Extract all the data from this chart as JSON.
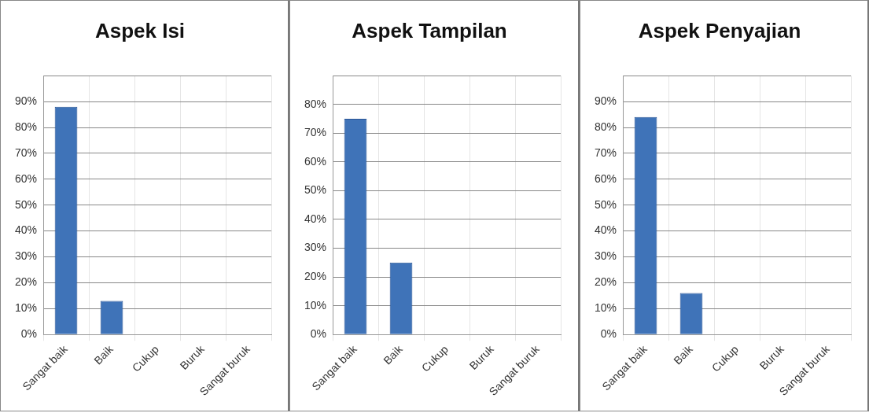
{
  "chart_data": [
    {
      "type": "bar",
      "title": "Aspek Isi",
      "categories": [
        "Sangat baik",
        "Baik",
        "Cukup",
        "Buruk",
        "Sangat buruk"
      ],
      "values": [
        88,
        13,
        0,
        0,
        0
      ],
      "color": "#3f73b8",
      "ylim": [
        0,
        100
      ],
      "yticks": [
        {
          "value": 0,
          "label": "0%"
        },
        {
          "value": 10,
          "label": "10%"
        },
        {
          "value": 20,
          "label": "20%"
        },
        {
          "value": 30,
          "label": "30%"
        },
        {
          "value": 40,
          "label": "40%"
        },
        {
          "value": 50,
          "label": "50%"
        },
        {
          "value": 60,
          "label": "60%"
        },
        {
          "value": 70,
          "label": "70%"
        },
        {
          "value": 80,
          "label": "80%"
        },
        {
          "value": 90,
          "label": "90%"
        },
        {
          "value": 100,
          "label": null
        }
      ],
      "grid": true,
      "legend": false
    },
    {
      "type": "bar",
      "title": "Aspek Tampilan",
      "categories": [
        "Sangat baik",
        "Baik",
        "Cukup",
        "Buruk",
        "Sangat buruk"
      ],
      "values": [
        75,
        25,
        0,
        0,
        0
      ],
      "color": "#3f73b8",
      "ylim": [
        0,
        90
      ],
      "yticks": [
        {
          "value": 0,
          "label": "0%"
        },
        {
          "value": 10,
          "label": "10%"
        },
        {
          "value": 20,
          "label": "20%"
        },
        {
          "value": 30,
          "label": "30%"
        },
        {
          "value": 40,
          "label": "40%"
        },
        {
          "value": 50,
          "label": "50%"
        },
        {
          "value": 60,
          "label": "60%"
        },
        {
          "value": 70,
          "label": "70%"
        },
        {
          "value": 80,
          "label": "80%"
        },
        {
          "value": 90,
          "label": null
        }
      ],
      "grid": true,
      "legend": false
    },
    {
      "type": "bar",
      "title": "Aspek Penyajian",
      "categories": [
        "Sangat baik",
        "Baik",
        "Cukup",
        "Buruk",
        "Sangat buruk"
      ],
      "values": [
        84,
        16,
        0,
        0,
        0
      ],
      "color": "#3f73b8",
      "ylim": [
        0,
        100
      ],
      "yticks": [
        {
          "value": 0,
          "label": "0%"
        },
        {
          "value": 10,
          "label": "10%"
        },
        {
          "value": 20,
          "label": "20%"
        },
        {
          "value": 30,
          "label": "30%"
        },
        {
          "value": 40,
          "label": "40%"
        },
        {
          "value": 50,
          "label": "50%"
        },
        {
          "value": 60,
          "label": "60%"
        },
        {
          "value": 70,
          "label": "70%"
        },
        {
          "value": 80,
          "label": "80%"
        },
        {
          "value": 90,
          "label": "90%"
        },
        {
          "value": 100,
          "label": null
        }
      ],
      "grid": true,
      "legend": false
    }
  ]
}
